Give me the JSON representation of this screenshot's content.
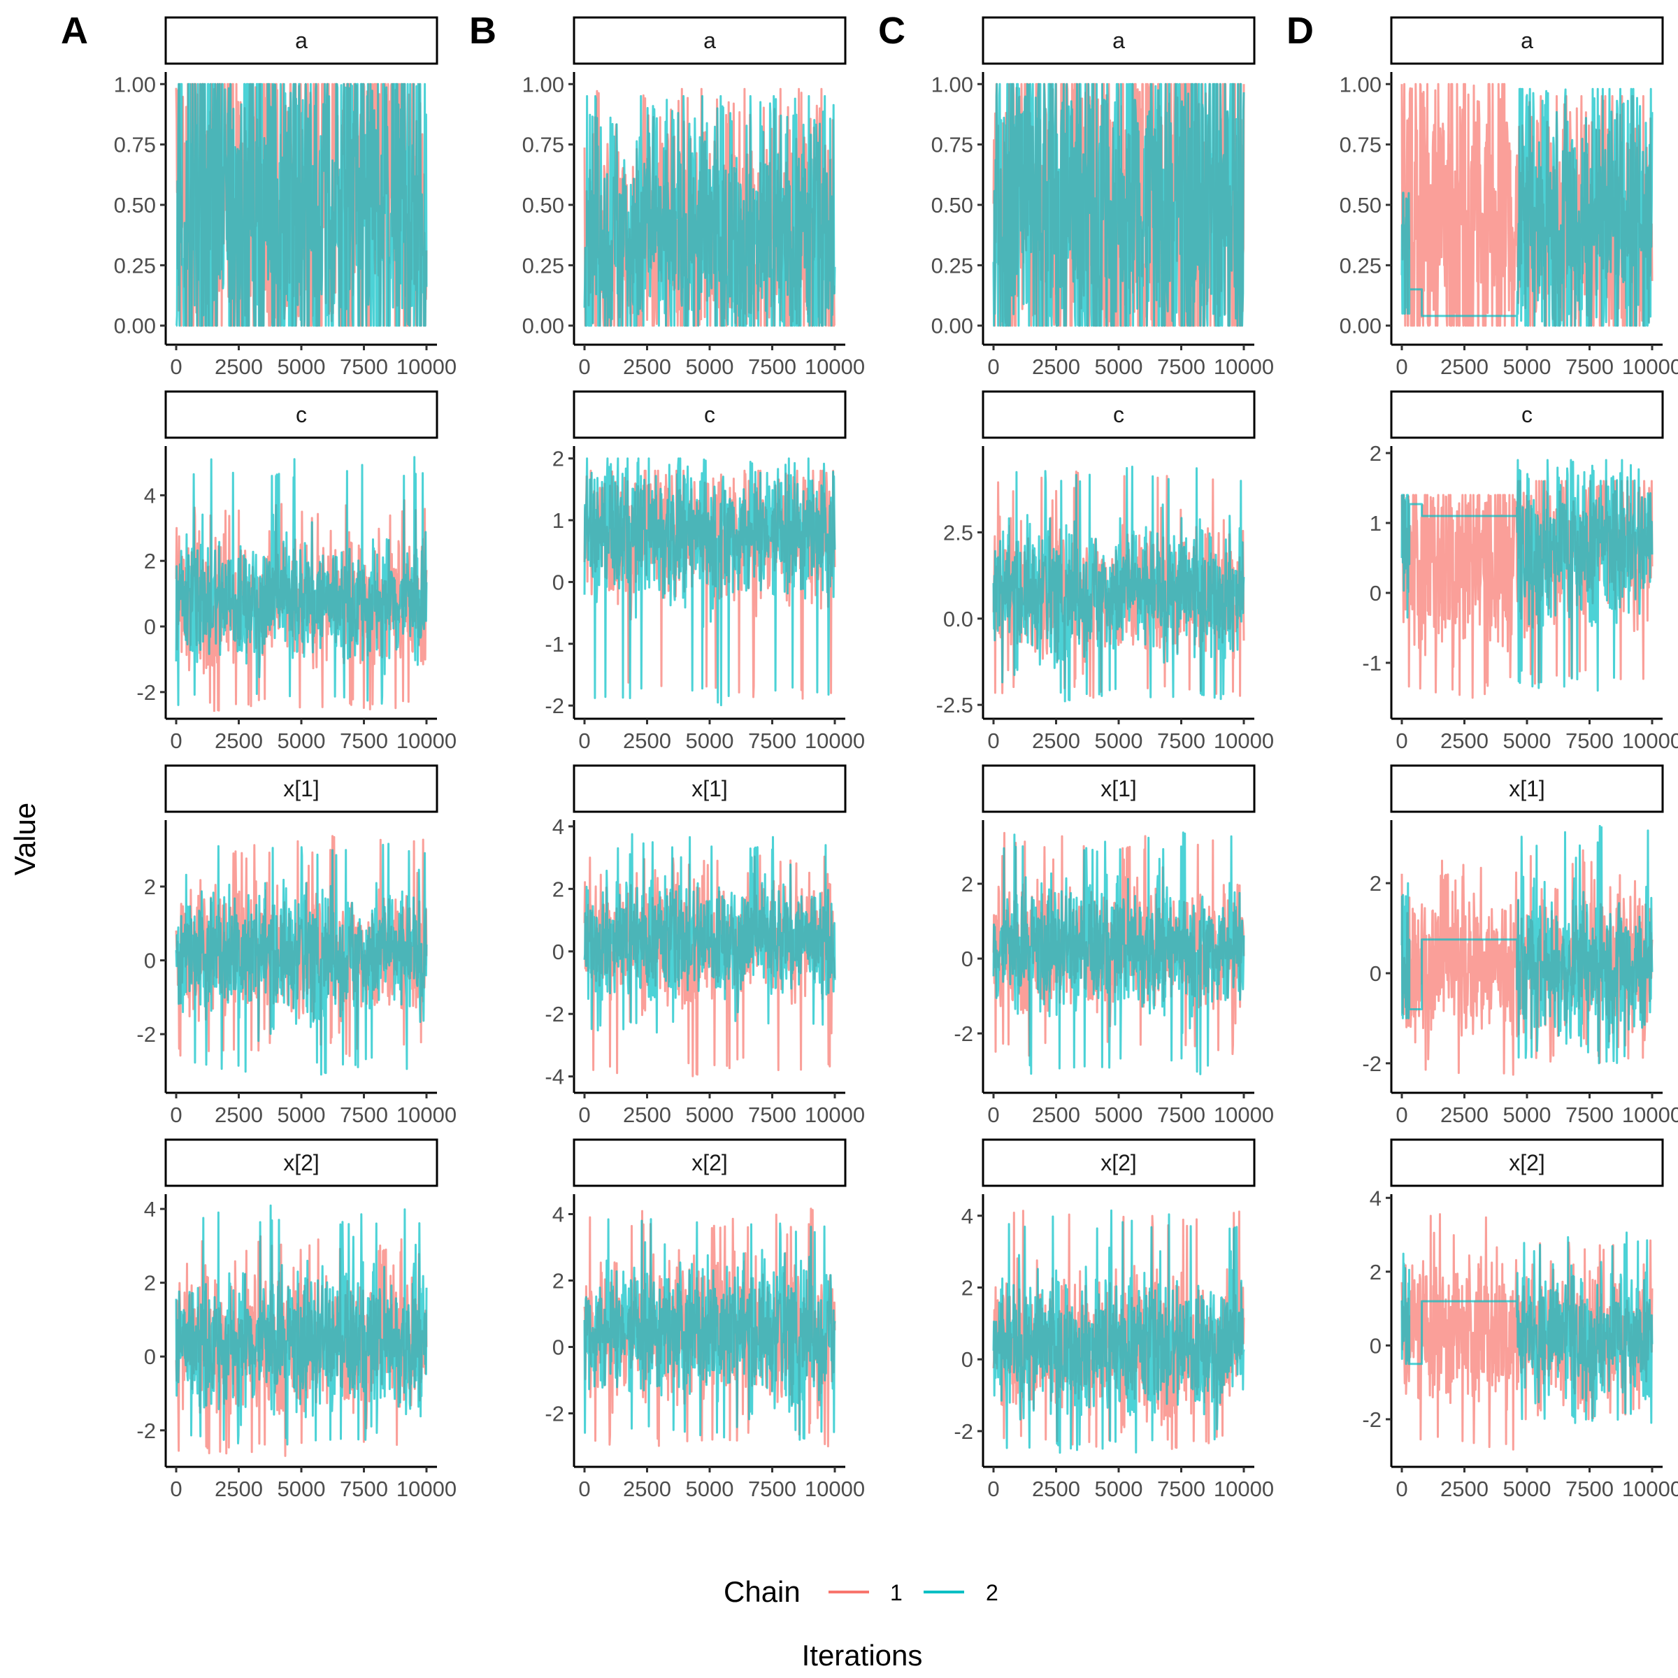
{
  "figure": {
    "ylabel": "Value",
    "xlabel": "Iterations",
    "legend": {
      "title": "Chain",
      "position": "bottom",
      "entries": [
        {
          "label": "1",
          "color": "#F8766D"
        },
        {
          "label": "2",
          "color": "#00BFC4"
        }
      ]
    }
  },
  "chart_data": [
    {
      "type": "line",
      "column": "A",
      "letter": "A",
      "x_range": [
        0,
        10000
      ],
      "x_ticks": [
        "0",
        "2500",
        "5000",
        "7500",
        "10000"
      ],
      "panels": [
        {
          "strip": "a",
          "ylim": [
            -0.05,
            1.05
          ],
          "y_ticks": [
            "0.00",
            "0.25",
            "0.50",
            "0.75",
            "1.00"
          ],
          "y_tick_values": [
            0,
            0.25,
            0.5,
            0.75,
            1.0
          ],
          "series": [
            {
              "name": "1",
              "center": 0.5,
              "spread": 0.5,
              "min": 0.0,
              "max": 1.0
            },
            {
              "name": "2",
              "center": 0.5,
              "spread": 0.5,
              "min": 0.0,
              "max": 1.0
            }
          ]
        },
        {
          "strip": "c",
          "ylim": [
            -2.6,
            5.5
          ],
          "y_ticks": [
            "-2",
            "0",
            "2",
            "4"
          ],
          "y_tick_values": [
            -2,
            0,
            2,
            4
          ],
          "series": [
            {
              "name": "1",
              "center": 0.8,
              "spread": 1.0,
              "min": -2.6,
              "max": 3.9
            },
            {
              "name": "2",
              "center": 0.8,
              "spread": 1.0,
              "min": -2.4,
              "max": 5.3
            }
          ]
        },
        {
          "strip": "x[1]",
          "ylim": [
            -3.4,
            3.8
          ],
          "y_ticks": [
            "-2",
            "0",
            "2"
          ],
          "y_tick_values": [
            -2,
            0,
            2
          ],
          "series": [
            {
              "name": "1",
              "center": 0.2,
              "spread": 0.9,
              "min": -2.6,
              "max": 3.4
            },
            {
              "name": "2",
              "center": 0.2,
              "spread": 0.9,
              "min": -3.1,
              "max": 3.3
            }
          ]
        },
        {
          "strip": "x[2]",
          "ylim": [
            -2.8,
            4.4
          ],
          "y_ticks": [
            "-2",
            "0",
            "2",
            "4"
          ],
          "y_tick_values": [
            -2,
            0,
            2,
            4
          ],
          "series": [
            {
              "name": "1",
              "center": 0.4,
              "spread": 1.0,
              "min": -2.7,
              "max": 3.3
            },
            {
              "name": "2",
              "center": 0.4,
              "spread": 1.0,
              "min": -2.4,
              "max": 4.2
            }
          ]
        }
      ]
    },
    {
      "type": "line",
      "column": "B",
      "letter": "B",
      "x_range": [
        0,
        10000
      ],
      "x_ticks": [
        "0",
        "2500",
        "5000",
        "7500",
        "10000"
      ],
      "panels": [
        {
          "strip": "a",
          "ylim": [
            -0.05,
            1.05
          ],
          "y_ticks": [
            "0.00",
            "0.25",
            "0.50",
            "0.75",
            "1.00"
          ],
          "y_tick_values": [
            0,
            0.25,
            0.5,
            0.75,
            1.0
          ],
          "series": [
            {
              "name": "1",
              "center": 0.38,
              "spread": 0.3,
              "min": 0.0,
              "max": 0.98
            },
            {
              "name": "2",
              "center": 0.38,
              "spread": 0.3,
              "min": 0.0,
              "max": 0.95
            }
          ]
        },
        {
          "strip": "c",
          "ylim": [
            -2.1,
            2.2
          ],
          "y_ticks": [
            "-2",
            "-1",
            "0",
            "1",
            "2"
          ],
          "y_tick_values": [
            -2,
            -1,
            0,
            1,
            2
          ],
          "series": [
            {
              "name": "1",
              "center": 0.8,
              "spread": 0.6,
              "min": -1.9,
              "max": 1.8
            },
            {
              "name": "2",
              "center": 0.8,
              "spread": 0.6,
              "min": -2.0,
              "max": 2.0
            }
          ]
        },
        {
          "strip": "x[1]",
          "ylim": [
            -4.3,
            4.2
          ],
          "y_ticks": [
            "-4",
            "-2",
            "0",
            "2",
            "4"
          ],
          "y_tick_values": [
            -4,
            -2,
            0,
            2,
            4
          ],
          "series": [
            {
              "name": "1",
              "center": 0.4,
              "spread": 1.0,
              "min": -4.0,
              "max": 3.2
            },
            {
              "name": "2",
              "center": 0.4,
              "spread": 1.0,
              "min": -2.6,
              "max": 3.8
            }
          ]
        },
        {
          "strip": "x[2]",
          "ylim": [
            -3.4,
            4.6
          ],
          "y_ticks": [
            "-2",
            "0",
            "2",
            "4"
          ],
          "y_tick_values": [
            -2,
            0,
            2,
            4
          ],
          "series": [
            {
              "name": "1",
              "center": 0.5,
              "spread": 1.1,
              "min": -3.0,
              "max": 4.2
            },
            {
              "name": "2",
              "center": 0.5,
              "spread": 1.1,
              "min": -2.8,
              "max": 4.0
            }
          ]
        }
      ]
    },
    {
      "type": "line",
      "column": "C",
      "letter": "C",
      "x_range": [
        0,
        10000
      ],
      "x_ticks": [
        "0",
        "2500",
        "5000",
        "7500",
        "10000"
      ],
      "panels": [
        {
          "strip": "a",
          "ylim": [
            -0.05,
            1.05
          ],
          "y_ticks": [
            "0.00",
            "0.25",
            "0.50",
            "0.75",
            "1.00"
          ],
          "y_tick_values": [
            0,
            0.25,
            0.5,
            0.75,
            1.0
          ],
          "series": [
            {
              "name": "1",
              "center": 0.5,
              "spread": 0.5,
              "min": 0.0,
              "max": 1.0
            },
            {
              "name": "2",
              "center": 0.5,
              "spread": 0.5,
              "min": 0.0,
              "max": 1.0
            }
          ]
        },
        {
          "strip": "c",
          "ylim": [
            -2.7,
            5.0
          ],
          "y_ticks": [
            "-2.5",
            "0.0",
            "2.5"
          ],
          "y_tick_values": [
            -2.5,
            0,
            2.5
          ],
          "series": [
            {
              "name": "1",
              "center": 0.8,
              "spread": 1.0,
              "min": -2.3,
              "max": 4.3
            },
            {
              "name": "2",
              "center": 0.8,
              "spread": 1.0,
              "min": -2.4,
              "max": 4.6
            }
          ]
        },
        {
          "strip": "x[1]",
          "ylim": [
            -3.4,
            3.7
          ],
          "y_ticks": [
            "-2",
            "0",
            "2"
          ],
          "y_tick_values": [
            -2,
            0,
            2
          ],
          "series": [
            {
              "name": "1",
              "center": 0.3,
              "spread": 0.9,
              "min": -2.6,
              "max": 3.4
            },
            {
              "name": "2",
              "center": 0.3,
              "spread": 0.9,
              "min": -3.1,
              "max": 3.4
            }
          ]
        },
        {
          "strip": "x[2]",
          "ylim": [
            -2.8,
            4.6
          ],
          "y_ticks": [
            "-2",
            "0",
            "2",
            "4"
          ],
          "y_tick_values": [
            -2,
            0,
            2,
            4
          ],
          "series": [
            {
              "name": "1",
              "center": 0.4,
              "spread": 1.0,
              "min": -2.5,
              "max": 4.3
            },
            {
              "name": "2",
              "center": 0.4,
              "spread": 1.0,
              "min": -2.6,
              "max": 4.2
            }
          ]
        }
      ]
    },
    {
      "type": "line",
      "column": "D",
      "letter": "D",
      "x_range": [
        0,
        10000
      ],
      "x_ticks": [
        "0",
        "2500",
        "5000",
        "7500",
        "10000"
      ],
      "panels": [
        {
          "strip": "a",
          "ylim": [
            -0.05,
            1.05
          ],
          "y_ticks": [
            "0.00",
            "0.25",
            "0.50",
            "0.75",
            "1.00"
          ],
          "y_tick_values": [
            0,
            0.25,
            0.5,
            0.75,
            1.0
          ],
          "series": [
            {
              "name": "1",
              "segments": [
                {
                  "from": 0,
                  "to": 4600,
                  "center": 0.45,
                  "spread": 0.45,
                  "min": 0.0,
                  "max": 1.0
                },
                {
                  "from": 4600,
                  "to": 10000,
                  "center": 0.4,
                  "spread": 0.3,
                  "min": 0.0,
                  "max": 0.95
                }
              ]
            },
            {
              "name": "2",
              "segments": [
                {
                  "from": 0,
                  "to": 300,
                  "center": 0.35,
                  "spread": 0.2,
                  "min": 0.05,
                  "max": 0.55
                },
                {
                  "from": 300,
                  "to": 4600,
                  "steps": [
                    [
                      300,
                      0.15
                    ],
                    [
                      800,
                      0.04
                    ]
                  ]
                },
                {
                  "from": 4600,
                  "to": 10000,
                  "center": 0.45,
                  "spread": 0.35,
                  "min": 0.0,
                  "max": 0.98
                }
              ]
            }
          ]
        },
        {
          "strip": "c",
          "ylim": [
            -1.7,
            2.1
          ],
          "y_ticks": [
            "-1",
            "0",
            "1",
            "2"
          ],
          "y_tick_values": [
            -1,
            0,
            1,
            2
          ],
          "series": [
            {
              "name": "1",
              "segments": [
                {
                  "from": 0,
                  "to": 4600,
                  "center": 0.5,
                  "spread": 0.8,
                  "min": -1.5,
                  "max": 1.4
                },
                {
                  "from": 4600,
                  "to": 10000,
                  "center": 0.7,
                  "spread": 0.6,
                  "min": -1.3,
                  "max": 1.6
                }
              ]
            },
            {
              "name": "2",
              "segments": [
                {
                  "from": 0,
                  "to": 300,
                  "center": 0.8,
                  "spread": 0.6,
                  "min": -0.6,
                  "max": 1.4
                },
                {
                  "from": 300,
                  "to": 4600,
                  "steps": [
                    [
                      300,
                      1.27
                    ],
                    [
                      800,
                      1.1
                    ]
                  ]
                },
                {
                  "from": 4600,
                  "to": 10000,
                  "center": 0.7,
                  "spread": 0.6,
                  "min": -1.4,
                  "max": 1.9
                }
              ]
            }
          ]
        },
        {
          "strip": "x[1]",
          "ylim": [
            -2.5,
            3.4
          ],
          "y_ticks": [
            "-2",
            "0",
            "2"
          ],
          "y_tick_values": [
            -2,
            0,
            2
          ],
          "series": [
            {
              "name": "1",
              "segments": [
                {
                  "from": 0,
                  "to": 4600,
                  "center": 0.2,
                  "spread": 0.9,
                  "min": -2.5,
                  "max": 2.5
                },
                {
                  "from": 4600,
                  "to": 10000,
                  "center": 0.2,
                  "spread": 0.9,
                  "min": -2.0,
                  "max": 2.8
                }
              ]
            },
            {
              "name": "2",
              "segments": [
                {
                  "from": 0,
                  "to": 300,
                  "center": 0.0,
                  "spread": 0.8,
                  "min": -1.0,
                  "max": 2.0
                },
                {
                  "from": 300,
                  "to": 4600,
                  "steps": [
                    [
                      300,
                      -0.8
                    ],
                    [
                      800,
                      0.75
                    ]
                  ]
                },
                {
                  "from": 4600,
                  "to": 10000,
                  "center": 0.2,
                  "spread": 0.9,
                  "min": -2.0,
                  "max": 3.3
                }
              ]
            }
          ]
        },
        {
          "strip": "x[2]",
          "ylim": [
            -3.1,
            4.1
          ],
          "y_ticks": [
            "-2",
            "0",
            "2",
            "4"
          ],
          "y_tick_values": [
            -2,
            0,
            2,
            4
          ],
          "series": [
            {
              "name": "1",
              "segments": [
                {
                  "from": 0,
                  "to": 4600,
                  "center": 0.4,
                  "spread": 1.1,
                  "min": -2.9,
                  "max": 3.7
                },
                {
                  "from": 4600,
                  "to": 10000,
                  "center": 0.3,
                  "spread": 0.9,
                  "min": -2.0,
                  "max": 3.0
                }
              ]
            },
            {
              "name": "2",
              "segments": [
                {
                  "from": 0,
                  "to": 300,
                  "center": 0.5,
                  "spread": 1.0,
                  "min": -0.5,
                  "max": 2.6
                },
                {
                  "from": 300,
                  "to": 4600,
                  "steps": [
                    [
                      300,
                      -0.5
                    ],
                    [
                      800,
                      1.2
                    ]
                  ]
                },
                {
                  "from": 4600,
                  "to": 10000,
                  "center": 0.3,
                  "spread": 0.9,
                  "min": -2.1,
                  "max": 3.1
                }
              ]
            }
          ]
        }
      ]
    }
  ]
}
